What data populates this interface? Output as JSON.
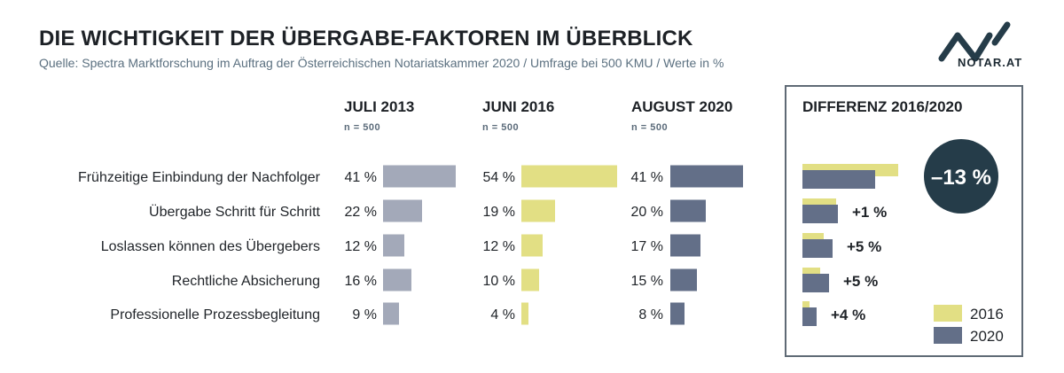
{
  "header": {
    "title": "DIE WICHTIGKEIT DER ÜBERGABE-FAKTOREN IM ÜBERBLICK",
    "subtitle": "Quelle: Spectra Marktforschung im Auftrag der Österreichischen Notariatskammer 2020 / Umfrage bei 500 KMU / Werte in %"
  },
  "logo": {
    "text": "NOTAR.AT"
  },
  "colors": {
    "s2013": "#a3a9b9",
    "s2016": "#e2df84",
    "s2020": "#636f88",
    "text": "#1f2328",
    "badge": "#253c49",
    "box_border": "#5f6a75"
  },
  "chart_data": {
    "type": "bar",
    "categories": [
      "Frühzeitige Einbindung der Nachfolger",
      "Übergabe Schritt für Schritt",
      "Loslassen können des Übergebers",
      "Rechtliche Absicherung",
      "Professionelle Prozessbegleitung"
    ],
    "series": [
      {
        "name": "JULI 2013",
        "n": "n = 500",
        "values": [
          41,
          22,
          12,
          16,
          9
        ]
      },
      {
        "name": "JUNI 2016",
        "n": "n = 500",
        "values": [
          54,
          19,
          12,
          10,
          4
        ]
      },
      {
        "name": "AUGUST 2020",
        "n": "n = 500",
        "values": [
          41,
          20,
          17,
          15,
          8
        ]
      }
    ],
    "unit": "%",
    "difference": {
      "title": "DIFFERENZ 2016/2020",
      "labels": [
        "–13 %",
        "+1 %",
        "+5 %",
        "+5 %",
        "+4 %"
      ],
      "legend": [
        {
          "label": "2016",
          "color": "#e2df84"
        },
        {
          "label": "2020",
          "color": "#636f88"
        }
      ]
    }
  }
}
